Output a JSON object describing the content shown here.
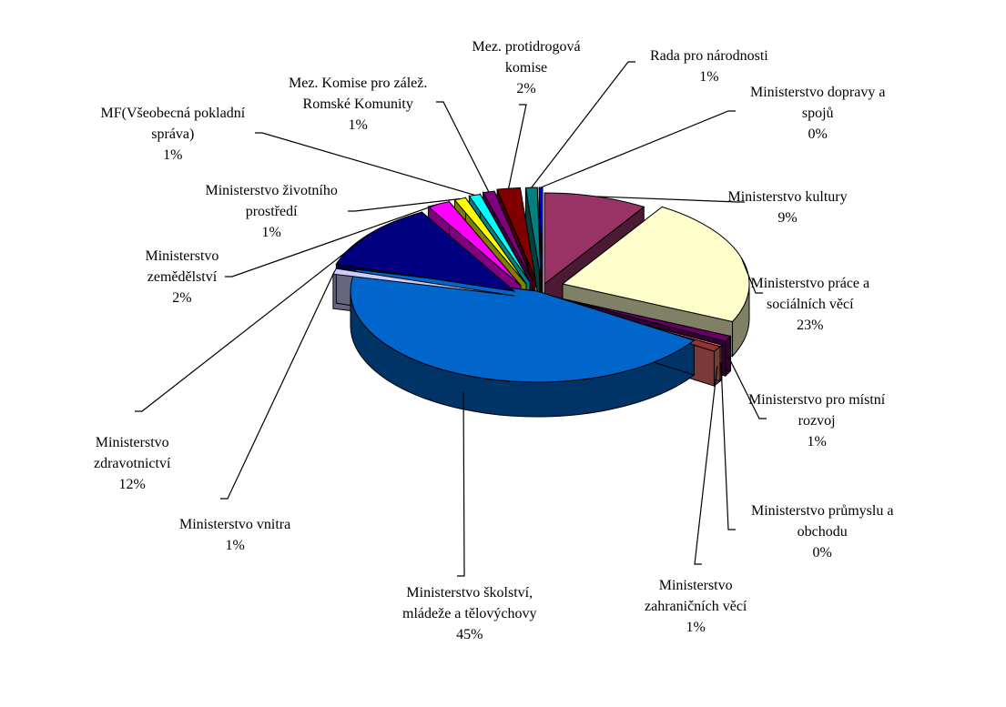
{
  "chart_data": {
    "type": "pie",
    "title": "",
    "slices": [
      {
        "lines": [
          "Ministerstvo kultury"
        ],
        "value": 9,
        "pct": "9%",
        "color": "#993366",
        "shade": "#4D1A33"
      },
      {
        "lines": [
          "Ministerstvo práce a",
          "sociálních věcí"
        ],
        "value": 23,
        "pct": "23%",
        "color": "#FFFFCC",
        "shade": "#808066"
      },
      {
        "lines": [
          "Ministerstvo pro místní",
          "rozvoj"
        ],
        "value": 1,
        "pct": "1%",
        "color": "#660066",
        "shade": "#330033"
      },
      {
        "lines": [
          "Ministerstvo průmyslu a",
          "obchodu"
        ],
        "value": 0.3,
        "pct": "0%",
        "color": "#FF8080",
        "shade": "#804040"
      },
      {
        "lines": [
          "Ministerstvo",
          "zahraničních věcí"
        ],
        "value": 1,
        "pct": "1%",
        "color": "#993333",
        "shade": "#7A3A3A"
      },
      {
        "lines": [
          "Ministerstvo školství,",
          "mládeže a tělovýchovy"
        ],
        "value": 45,
        "pct": "45%",
        "color": "#0066CC",
        "shade": "#003366"
      },
      {
        "lines": [
          "Ministerstvo vnitra"
        ],
        "value": 1,
        "pct": "1%",
        "color": "#CCCCFF",
        "shade": "#666680"
      },
      {
        "lines": [
          "Ministerstvo",
          "zdravotnictví"
        ],
        "value": 12,
        "pct": "12%",
        "color": "#000080",
        "shade": "#000040"
      },
      {
        "lines": [
          "Ministerstvo",
          "zemědělství"
        ],
        "value": 2,
        "pct": "2%",
        "color": "#FF00FF",
        "shade": "#800080"
      },
      {
        "lines": [
          "Ministerstvo životního",
          "prostředí"
        ],
        "value": 1,
        "pct": "1%",
        "color": "#FFFF00",
        "shade": "#808000"
      },
      {
        "lines": [
          "MF(Všeobecná pokladní",
          "správa)"
        ],
        "value": 1,
        "pct": "1%",
        "color": "#00FFFF",
        "shade": "#008080"
      },
      {
        "lines": [
          "Mez. Komise pro zálež.",
          "Romské Komunity"
        ],
        "value": 1,
        "pct": "1%",
        "color": "#800080",
        "shade": "#400040"
      },
      {
        "lines": [
          "Mez. protidrogová",
          "komise"
        ],
        "value": 2,
        "pct": "2%",
        "color": "#800000",
        "shade": "#400000"
      },
      {
        "lines": [
          "Rada pro národnosti"
        ],
        "value": 1,
        "pct": "1%",
        "color": "#008080",
        "shade": "#004040"
      },
      {
        "lines": [
          "Ministerstvo dopravy a",
          "spojů"
        ],
        "value": 0.3,
        "pct": "0%",
        "color": "#0000FF",
        "shade": "#000080"
      }
    ]
  }
}
